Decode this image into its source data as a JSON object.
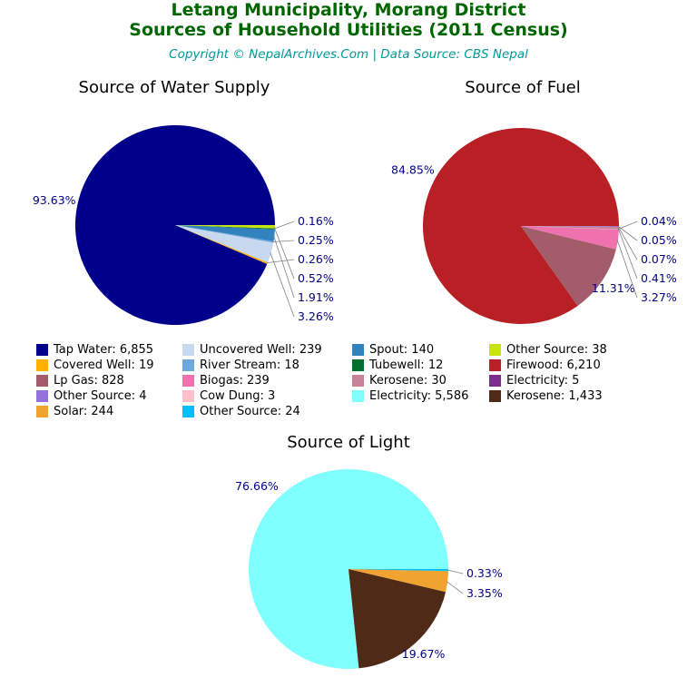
{
  "header": {
    "title_line1": "Letang Municipality, Morang District",
    "title_line2": "Sources of Household Utilities (2011 Census)",
    "copyright": "Copyright © NepalArchives.Com | Data Source: CBS Nepal"
  },
  "palette": {
    "title_green": "#006600",
    "copyright_teal": "#009896",
    "pct_label_blue": "#00008B",
    "leader_line_gray": "#808080"
  },
  "chart_data": [
    {
      "type": "pie",
      "title": "Source of Water Supply",
      "start_angle": 0,
      "direction": "counterclockwise",
      "slices": [
        {
          "label": "Tap Water",
          "value": 6855,
          "pct": "93.63%",
          "color": "#00008B"
        },
        {
          "label": "Covered Well",
          "value": 19,
          "pct": "0.26%",
          "color": "#FFB300"
        },
        {
          "label": "Uncovered Well",
          "value": 239,
          "pct": "3.26%",
          "color": "#C7D9F1"
        },
        {
          "label": "River Stream",
          "value": 18,
          "pct": "0.25%",
          "color": "#6FA8DC"
        },
        {
          "label": "Spout",
          "value": 140,
          "pct": "1.91%",
          "color": "#3182BD"
        },
        {
          "label": "Tubewell",
          "value": 12,
          "pct": "0.16%",
          "color": "#00702E"
        },
        {
          "label": "Other Source",
          "value": 38,
          "pct": "0.52%",
          "color": "#C6E50C"
        }
      ]
    },
    {
      "type": "pie",
      "title": "Source of Fuel",
      "start_angle": 0,
      "direction": "counterclockwise",
      "slices": [
        {
          "label": "Firewood",
          "value": 6210,
          "pct": "84.85%",
          "color": "#B82025"
        },
        {
          "label": "Lp Gas",
          "value": 828,
          "pct": "11.31%",
          "color": "#A35D6A"
        },
        {
          "label": "Biogas",
          "value": 239,
          "pct": "3.27%",
          "color": "#EF72AE"
        },
        {
          "label": "Cow Dung",
          "value": 3,
          "pct": "0.04%",
          "color": "#FFC0CB"
        },
        {
          "label": "Kerosene",
          "value": 30,
          "pct": "0.41%",
          "color": "#C98399"
        },
        {
          "label": "Electricity",
          "value": 5,
          "pct": "0.07%",
          "color": "#7D2E8D"
        },
        {
          "label": "Other Source",
          "value": 4,
          "pct": "0.05%",
          "color": "#9370DB"
        }
      ]
    },
    {
      "type": "pie",
      "title": "Source of Light",
      "start_angle": 0,
      "direction": "counterclockwise",
      "slices": [
        {
          "label": "Electricity",
          "value": 5586,
          "pct": "76.66%",
          "color": "#80FFFF"
        },
        {
          "label": "Kerosene",
          "value": 1433,
          "pct": "19.67%",
          "color": "#4F2B17"
        },
        {
          "label": "Solar",
          "value": 244,
          "pct": "3.35%",
          "color": "#F0A330"
        },
        {
          "label": "Other Source",
          "value": 24,
          "pct": "0.33%",
          "color": "#00BFFF"
        }
      ]
    }
  ],
  "legend": {
    "columns": [
      [
        {
          "label": "Tap Water: 6,855",
          "color": "#00008B"
        },
        {
          "label": "Covered Well: 19",
          "color": "#FFB300"
        },
        {
          "label": "Lp Gas: 828",
          "color": "#A35D6A"
        },
        {
          "label": "Other Source: 4",
          "color": "#9370DB"
        },
        {
          "label": "Solar: 244",
          "color": "#F0A330"
        }
      ],
      [
        {
          "label": "Uncovered Well: 239",
          "color": "#C7D9F1"
        },
        {
          "label": "River Stream: 18",
          "color": "#6FA8DC"
        },
        {
          "label": "Biogas: 239",
          "color": "#EF72AE"
        },
        {
          "label": "Cow Dung: 3",
          "color": "#FFC0CB"
        },
        {
          "label": "Other Source: 24",
          "color": "#00BFFF"
        }
      ],
      [
        {
          "label": "Spout: 140",
          "color": "#3182BD"
        },
        {
          "label": "Tubewell: 12",
          "color": "#00702E"
        },
        {
          "label": "Kerosene: 30",
          "color": "#C98399"
        },
        {
          "label": "Electricity: 5,586",
          "color": "#80FFFF"
        }
      ],
      [
        {
          "label": "Other Source: 38",
          "color": "#C6E50C"
        },
        {
          "label": "Firewood: 6,210",
          "color": "#B82025"
        },
        {
          "label": "Electricity: 5",
          "color": "#7D2E8D"
        },
        {
          "label": "Kerosene: 1,433",
          "color": "#4F2B17"
        }
      ]
    ]
  }
}
